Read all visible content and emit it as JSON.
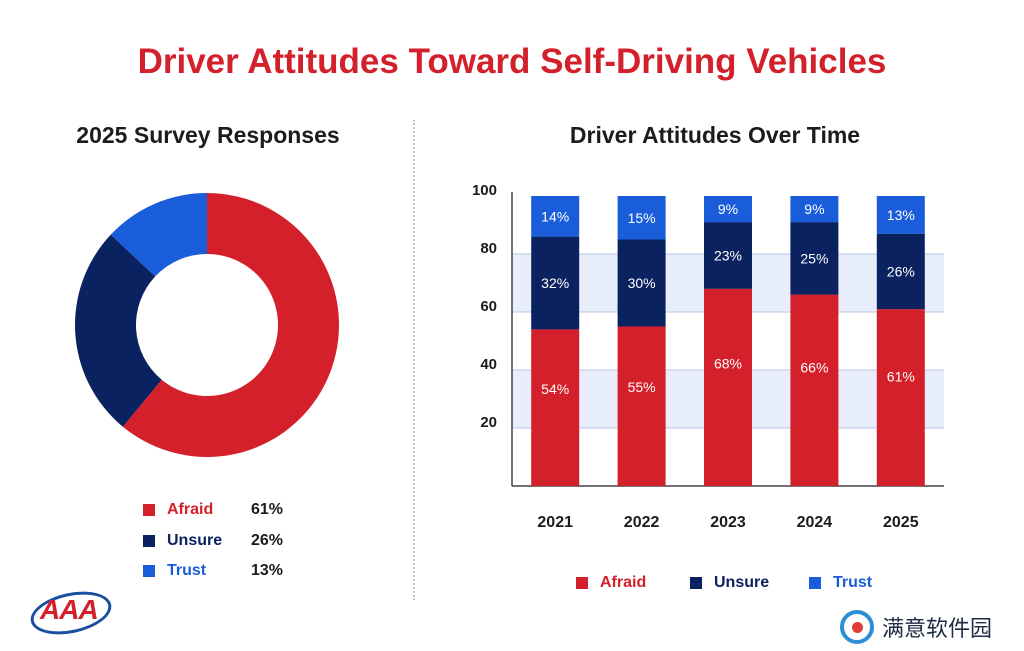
{
  "title": "Driver Attitudes Toward Self-Driving Vehicles",
  "colors": {
    "afraid": "#d4202a",
    "unsure": "#0b2260",
    "trust": "#1a5ddb",
    "band": "#e8eefb",
    "title": "#d4202a"
  },
  "chart_data": [
    {
      "type": "pie",
      "title": "2025 Survey Responses",
      "labels": [
        "Afraid",
        "Unsure",
        "Trust"
      ],
      "values": [
        61,
        26,
        13
      ],
      "value_labels": [
        "61%",
        "26%",
        "13%"
      ],
      "legend": "bottom",
      "donut": true
    },
    {
      "type": "bar",
      "stacked": true,
      "title": "Driver Attitudes Over Time",
      "categories": [
        "2021",
        "2022",
        "2023",
        "2024",
        "2025"
      ],
      "series": [
        {
          "name": "Afraid",
          "values": [
            54,
            55,
            68,
            66,
            61
          ],
          "labels": [
            "54%",
            "55%",
            "68%",
            "66%",
            "61%"
          ]
        },
        {
          "name": "Unsure",
          "values": [
            32,
            30,
            23,
            25,
            26
          ],
          "labels": [
            "32%",
            "30%",
            "23%",
            "25%",
            "26%"
          ]
        },
        {
          "name": "Trust",
          "values": [
            14,
            15,
            9,
            9,
            13
          ],
          "labels": [
            "14%",
            "15%",
            "9%",
            "9%",
            "13%"
          ]
        }
      ],
      "ylim": [
        0,
        100
      ],
      "yticks": [
        "20",
        "40",
        "60",
        "80",
        "100"
      ],
      "ytick_values": [
        20,
        40,
        60,
        80,
        100
      ],
      "legend": "bottom"
    }
  ],
  "logo": {
    "text": "AAA"
  },
  "watermark": {
    "text": "满意软件园"
  }
}
